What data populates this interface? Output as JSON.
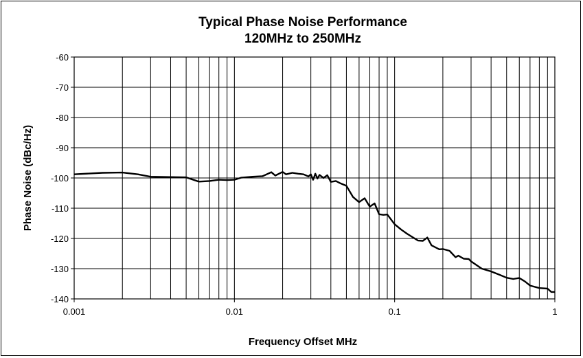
{
  "chart_data": {
    "type": "line",
    "title": "Typical Phase Noise Performance",
    "subtitle": "120MHz to 250MHz",
    "xlabel": "Frequency Offset MHz",
    "ylabel": "Phase Noise (dBc/Hz)",
    "x_scale": "log",
    "xlim": [
      0.001,
      1
    ],
    "ylim": [
      -140,
      -60
    ],
    "x_ticks": [
      0.001,
      0.01,
      0.1,
      1
    ],
    "x_tick_labels": [
      "0.001",
      "0.01",
      "0.1",
      "1"
    ],
    "y_ticks": [
      -60,
      -70,
      -80,
      -90,
      -100,
      -110,
      -120,
      -130,
      -140
    ],
    "y_tick_labels": [
      "-60",
      "-70",
      "-80",
      "-90",
      "-100",
      "-110",
      "-120",
      "-130",
      "-140"
    ],
    "grid": true,
    "legend": "none",
    "line_color": "#000000",
    "series": [
      {
        "x": [
          0.001,
          0.0015,
          0.002,
          0.0025,
          0.003,
          0.004,
          0.005,
          0.006,
          0.007,
          0.008,
          0.009,
          0.01,
          0.011,
          0.013,
          0.015,
          0.017,
          0.018,
          0.02,
          0.021,
          0.023,
          0.025,
          0.027,
          0.029,
          0.03,
          0.031,
          0.032,
          0.033,
          0.034,
          0.036,
          0.038,
          0.04,
          0.043,
          0.046,
          0.05,
          0.055,
          0.06,
          0.065,
          0.07,
          0.075,
          0.08,
          0.085,
          0.09,
          0.1,
          0.11,
          0.12,
          0.14,
          0.15,
          0.16,
          0.17,
          0.19,
          0.2,
          0.22,
          0.24,
          0.25,
          0.27,
          0.29,
          0.3,
          0.35,
          0.4,
          0.45,
          0.5,
          0.55,
          0.6,
          0.65,
          0.7,
          0.8,
          0.9,
          0.95,
          1.0
        ],
        "y": [
          -98.8,
          -98.3,
          -98.2,
          -98.8,
          -99.6,
          -99.7,
          -99.8,
          -101.2,
          -101,
          -100.6,
          -100.7,
          -100.6,
          -99.9,
          -99.6,
          -99.4,
          -98.1,
          -99.2,
          -98,
          -98.8,
          -98.3,
          -98.6,
          -98.8,
          -99.5,
          -98.8,
          -100.6,
          -98.6,
          -100.2,
          -99,
          -100,
          -99.1,
          -101.3,
          -101,
          -101.8,
          -102.6,
          -106.3,
          -108,
          -106.7,
          -109.5,
          -108.4,
          -112,
          -112.2,
          -112.1,
          -115.3,
          -117.1,
          -118.5,
          -120.7,
          -120.8,
          -119.7,
          -122.3,
          -123.6,
          -123.5,
          -124.1,
          -126.2,
          -125.7,
          -126.7,
          -126.8,
          -127.6,
          -130,
          -130.9,
          -132,
          -133,
          -133.4,
          -133.1,
          -134.2,
          -135.6,
          -136.4,
          -136.6,
          -137.7,
          -137.7
        ]
      }
    ]
  }
}
